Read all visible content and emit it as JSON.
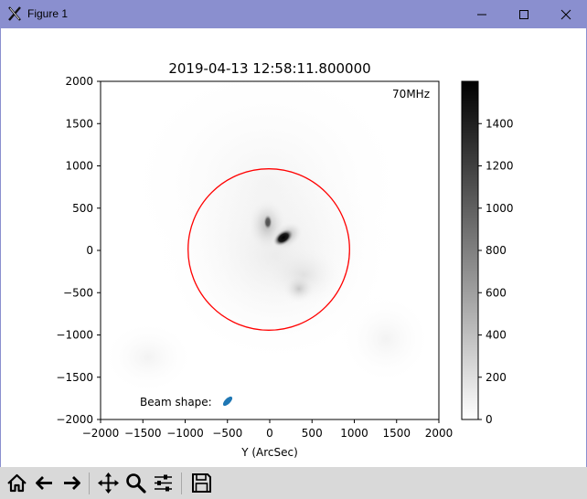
{
  "window": {
    "title": "Figure 1",
    "controls": [
      "minimize",
      "maximize",
      "close"
    ]
  },
  "colors": {
    "titlebar": "#8a8fcf",
    "limb_circle": "#ff0000",
    "beam": "#1f77b4",
    "toolbar": "#d9d9d9"
  },
  "plot": {
    "title": "2019-04-13 12:58:11.800000",
    "frequency_label": "70MHz",
    "xlabel": "Y (ArcSec)",
    "beam_label": "Beam shape:"
  },
  "chart_data": {
    "type": "heatmap",
    "title": "2019-04-13 12:58:11.800000",
    "xlabel": "Y (ArcSec)",
    "ylabel": "",
    "xlim": [
      -2000,
      2000
    ],
    "ylim": [
      -2000,
      2000
    ],
    "xticks": [
      "−2000",
      "−1500",
      "−1000",
      "−500",
      "0",
      "500",
      "1000",
      "1500",
      "2000"
    ],
    "yticks": [
      "2000",
      "1500",
      "1000",
      "500",
      "0",
      "−500",
      "−1000",
      "−1500",
      "−2000"
    ],
    "colorbar": {
      "colormap": "gray_r",
      "range": [
        0,
        1600
      ],
      "ticks": [
        "1400",
        "1200",
        "1000",
        "800",
        "600",
        "400",
        "200",
        "0"
      ]
    },
    "limb_radius": 960,
    "source_peak": {
      "x": 180,
      "y": 150,
      "value": 1600
    },
    "annotation": "70MHz",
    "grid": false
  },
  "toolbar": {
    "buttons": [
      {
        "name": "home-icon"
      },
      {
        "name": "back-icon"
      },
      {
        "name": "forward-icon"
      },
      {
        "name": "pan-icon"
      },
      {
        "name": "zoom-icon"
      },
      {
        "name": "configure-subplots-icon"
      },
      {
        "name": "save-icon"
      }
    ]
  }
}
